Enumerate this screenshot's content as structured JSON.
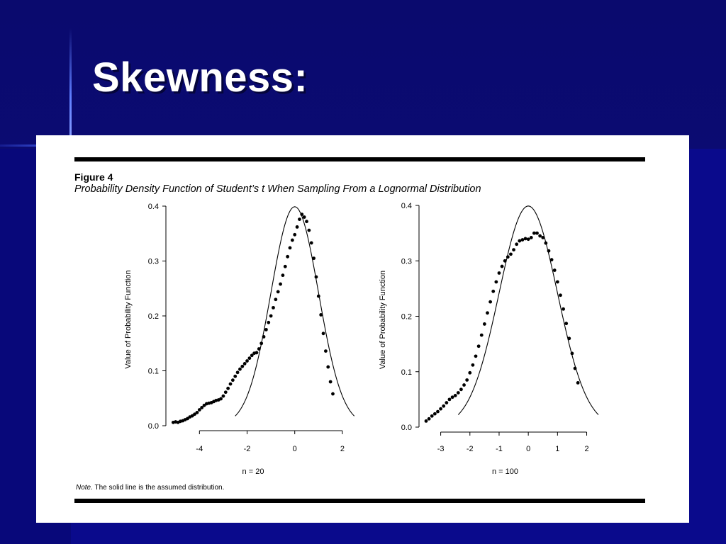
{
  "slide": {
    "title": "Skewness:"
  },
  "figure": {
    "label": "Figure 4",
    "caption": "Probability Density Function of Student’s t When Sampling From a Lognormal Distribution",
    "note_prefix": "Note.",
    "note_text": " The solid line is the assumed distribution."
  },
  "colors": {
    "background": "#0a0a6e",
    "title": "#ffffff",
    "panel": "#ffffff",
    "ink": "#000000"
  },
  "chart_data": [
    {
      "type": "scatter",
      "title": "",
      "xlabel": "n = 20",
      "ylabel": "Value of Probability Function",
      "xlim": [
        -5.2,
        2.3
      ],
      "ylim": [
        0,
        0.4
      ],
      "xticks": [
        -4,
        -2,
        0,
        2
      ],
      "yticks": [
        0.0,
        0.1,
        0.2,
        0.3,
        0.4
      ],
      "series": [
        {
          "kind": "curve",
          "style": "solid line",
          "x": [
            -2.5,
            -2.0,
            -1.5,
            -1.0,
            -0.5,
            0.0,
            0.5,
            1.0,
            1.5,
            2.0,
            2.5
          ],
          "y": [
            0.025,
            0.053,
            0.129,
            0.242,
            0.352,
            0.399,
            0.352,
            0.242,
            0.129,
            0.053,
            0.025
          ]
        },
        {
          "kind": "points",
          "style": "dots",
          "x": [
            -5.1,
            -5.0,
            -4.9,
            -4.8,
            -4.7,
            -4.6,
            -4.5,
            -4.4,
            -4.3,
            -4.2,
            -4.1,
            -4.0,
            -3.9,
            -3.8,
            -3.7,
            -3.6,
            -3.5,
            -3.4,
            -3.3,
            -3.2,
            -3.1,
            -3.0,
            -2.9,
            -2.8,
            -2.7,
            -2.6,
            -2.5,
            -2.4,
            -2.3,
            -2.2,
            -2.1,
            -2.0,
            -1.9,
            -1.8,
            -1.7,
            -1.6,
            -1.5,
            -1.4,
            -1.3,
            -1.2,
            -1.1,
            -1.0,
            -0.9,
            -0.8,
            -0.7,
            -0.6,
            -0.5,
            -0.4,
            -0.3,
            -0.2,
            -0.1,
            0.0,
            0.1,
            0.2,
            0.3,
            0.4,
            0.5,
            0.6,
            0.7,
            0.8,
            0.9,
            1.0,
            1.1,
            1.2,
            1.3,
            1.4,
            1.5,
            1.6
          ],
          "y": [
            0.006,
            0.007,
            0.006,
            0.008,
            0.009,
            0.011,
            0.013,
            0.016,
            0.018,
            0.021,
            0.024,
            0.029,
            0.033,
            0.037,
            0.04,
            0.041,
            0.042,
            0.044,
            0.046,
            0.047,
            0.049,
            0.054,
            0.061,
            0.068,
            0.076,
            0.083,
            0.09,
            0.097,
            0.103,
            0.108,
            0.113,
            0.118,
            0.123,
            0.128,
            0.132,
            0.133,
            0.14,
            0.15,
            0.162,
            0.175,
            0.188,
            0.2,
            0.215,
            0.23,
            0.244,
            0.258,
            0.274,
            0.29,
            0.308,
            0.324,
            0.338,
            0.348,
            0.362,
            0.376,
            0.385,
            0.38,
            0.372,
            0.356,
            0.333,
            0.305,
            0.271,
            0.236,
            0.202,
            0.168,
            0.136,
            0.107,
            0.08,
            0.058
          ]
        }
      ]
    },
    {
      "type": "scatter",
      "title": "",
      "xlabel": "n = 100",
      "ylabel": "Value of Probability Function",
      "xlim": [
        -3.5,
        2.4
      ],
      "ylim": [
        0,
        0.4
      ],
      "xticks": [
        -3,
        -2,
        -1,
        0,
        1,
        2
      ],
      "yticks": [
        0.0,
        0.1,
        0.2,
        0.3,
        0.4
      ],
      "series": [
        {
          "kind": "curve",
          "style": "solid line",
          "x": [
            -2.4,
            -2.0,
            -1.5,
            -1.0,
            -0.5,
            0.0,
            0.5,
            1.0,
            1.5,
            2.0,
            2.4
          ],
          "y": [
            0.022,
            0.054,
            0.13,
            0.242,
            0.352,
            0.399,
            0.352,
            0.242,
            0.13,
            0.054,
            0.022
          ]
        },
        {
          "kind": "points",
          "style": "dots",
          "x": [
            -3.5,
            -3.4,
            -3.3,
            -3.2,
            -3.1,
            -3.0,
            -2.9,
            -2.8,
            -2.7,
            -2.6,
            -2.5,
            -2.4,
            -2.3,
            -2.2,
            -2.1,
            -2.0,
            -1.9,
            -1.8,
            -1.7,
            -1.6,
            -1.5,
            -1.4,
            -1.3,
            -1.2,
            -1.1,
            -1.0,
            -0.9,
            -0.8,
            -0.7,
            -0.6,
            -0.5,
            -0.4,
            -0.3,
            -0.2,
            -0.1,
            0.0,
            0.1,
            0.2,
            0.3,
            0.4,
            0.5,
            0.6,
            0.7,
            0.8,
            0.9,
            1.0,
            1.1,
            1.2,
            1.3,
            1.4,
            1.5,
            1.6,
            1.7
          ],
          "y": [
            0.011,
            0.015,
            0.02,
            0.024,
            0.028,
            0.033,
            0.038,
            0.044,
            0.05,
            0.054,
            0.057,
            0.062,
            0.068,
            0.076,
            0.085,
            0.098,
            0.112,
            0.128,
            0.146,
            0.166,
            0.186,
            0.206,
            0.226,
            0.245,
            0.262,
            0.278,
            0.29,
            0.3,
            0.307,
            0.312,
            0.32,
            0.33,
            0.336,
            0.338,
            0.34,
            0.339,
            0.342,
            0.35,
            0.35,
            0.345,
            0.342,
            0.332,
            0.318,
            0.302,
            0.283,
            0.262,
            0.238,
            0.213,
            0.187,
            0.16,
            0.133,
            0.106,
            0.08
          ]
        }
      ]
    }
  ]
}
